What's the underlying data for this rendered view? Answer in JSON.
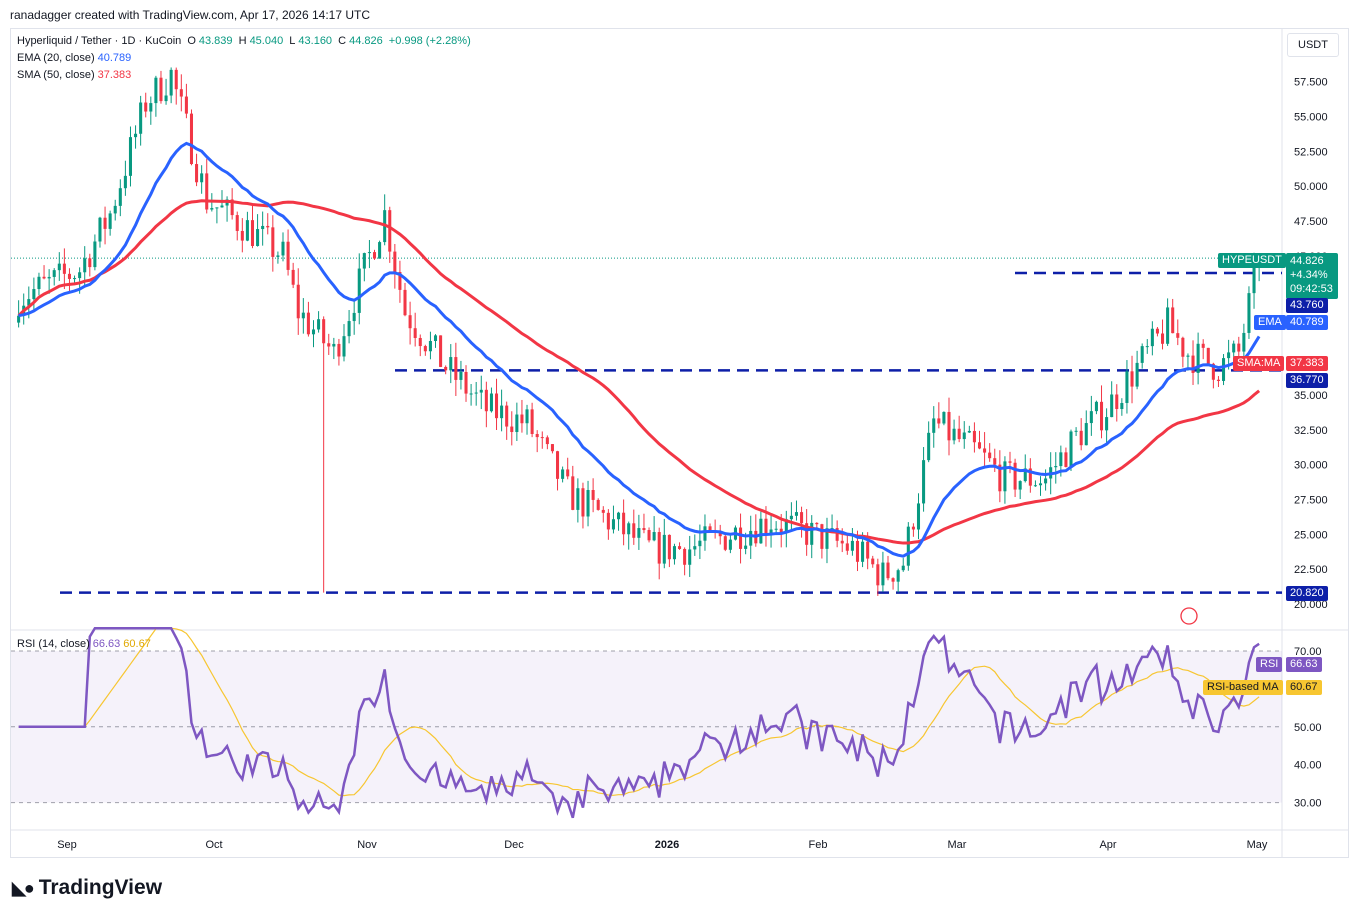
{
  "header": {
    "credit": "ranadagger created with TradingView.com, Apr 17, 2026 14:17 UTC"
  },
  "legend": {
    "symbol": "Hyperliquid / Tether · 1D · KuCoin",
    "o_label": "O",
    "o": "43.839",
    "h_label": "H",
    "h": "45.040",
    "l_label": "L",
    "l": "43.160",
    "c_label": "C",
    "c": "44.826",
    "chg": "+0.998 (+2.28%)",
    "ema_label": "EMA (20, close)",
    "ema_value": "40.789",
    "sma_label": "SMA (50, close)",
    "sma_value": "37.383",
    "rsi_label": "RSI (14, close)",
    "rsi_value": "66.63",
    "rsi_ma_value": "60.67"
  },
  "currency": "USDT",
  "price_tags": {
    "symbol": "HYPEUSDT",
    "price": "44.826",
    "pct": "+4.34%",
    "countdown": "09:42:53",
    "level1": "43.760",
    "ema_label": "EMA",
    "ema": "40.789",
    "sma_label": "SMA:MA",
    "sma": "37.383",
    "level2": "36.770",
    "level3": "20.820",
    "rsi_label": "RSI",
    "rsi": "66.63",
    "rsi_ma_label": "RSI-based MA",
    "rsi_ma": "60.67"
  },
  "colors": {
    "up": "#089981",
    "down": "#f23645",
    "ema": "#2962ff",
    "sma": "#f23645",
    "rsi": "#7e57c2",
    "rsi_ma": "#f7c631",
    "level": "#0d1fa8"
  },
  "chart_data": [
    {
      "type": "candlestick",
      "title": "Hyperliquid / Tether · 1D · KuCoin",
      "x": [
        "Sep",
        "Oct",
        "Nov",
        "Dec",
        "2026",
        "Feb",
        "Mar",
        "Apr",
        "May"
      ],
      "ylim": [
        20,
        60
      ],
      "y_ticks": [
        "20.000",
        "22.500",
        "25.000",
        "27.500",
        "30.000",
        "32.500",
        "35.000",
        "37.500",
        "40.000",
        "42.500",
        "45.000",
        "47.500",
        "50.000",
        "52.500",
        "55.000",
        "57.500"
      ],
      "horizontal_levels": [
        43.76,
        36.77,
        20.82
      ],
      "approx_close_path": [
        [
          0,
          42
        ],
        [
          12,
          44
        ],
        [
          18,
          48
        ],
        [
          25,
          56
        ],
        [
          30,
          58
        ],
        [
          37,
          49
        ],
        [
          45,
          47
        ],
        [
          52,
          45
        ],
        [
          55,
          41
        ],
        [
          62,
          38
        ],
        [
          68,
          44
        ],
        [
          72,
          48
        ],
        [
          76,
          41
        ],
        [
          84,
          37
        ],
        [
          92,
          34
        ],
        [
          100,
          33
        ],
        [
          108,
          28
        ],
        [
          116,
          26
        ],
        [
          124,
          24
        ],
        [
          132,
          24
        ],
        [
          140,
          25
        ],
        [
          148,
          26
        ],
        [
          156,
          25
        ],
        [
          164,
          24
        ],
        [
          170,
          22
        ],
        [
          174,
          23
        ],
        [
          180,
          33
        ],
        [
          188,
          31
        ],
        [
          194,
          29
        ],
        [
          202,
          29
        ],
        [
          208,
          32
        ],
        [
          214,
          34
        ],
        [
          220,
          37
        ],
        [
          226,
          40
        ],
        [
          230,
          38
        ],
        [
          236,
          37
        ],
        [
          240,
          38
        ],
        [
          244,
          44.8
        ]
      ],
      "series": [
        {
          "name": "EMA (20, close)",
          "last": 40.789
        },
        {
          "name": "SMA (50, close)",
          "last": 37.383
        }
      ]
    },
    {
      "type": "line",
      "title": "RSI (14, close)",
      "ylim": [
        25,
        75
      ],
      "y_ticks": [
        "30.00",
        "40.00",
        "50.00",
        "60.00",
        "70.00"
      ],
      "series": [
        {
          "name": "RSI (14, close)",
          "last": 66.63
        },
        {
          "name": "RSI-based MA",
          "last": 60.67
        }
      ]
    }
  ]
}
